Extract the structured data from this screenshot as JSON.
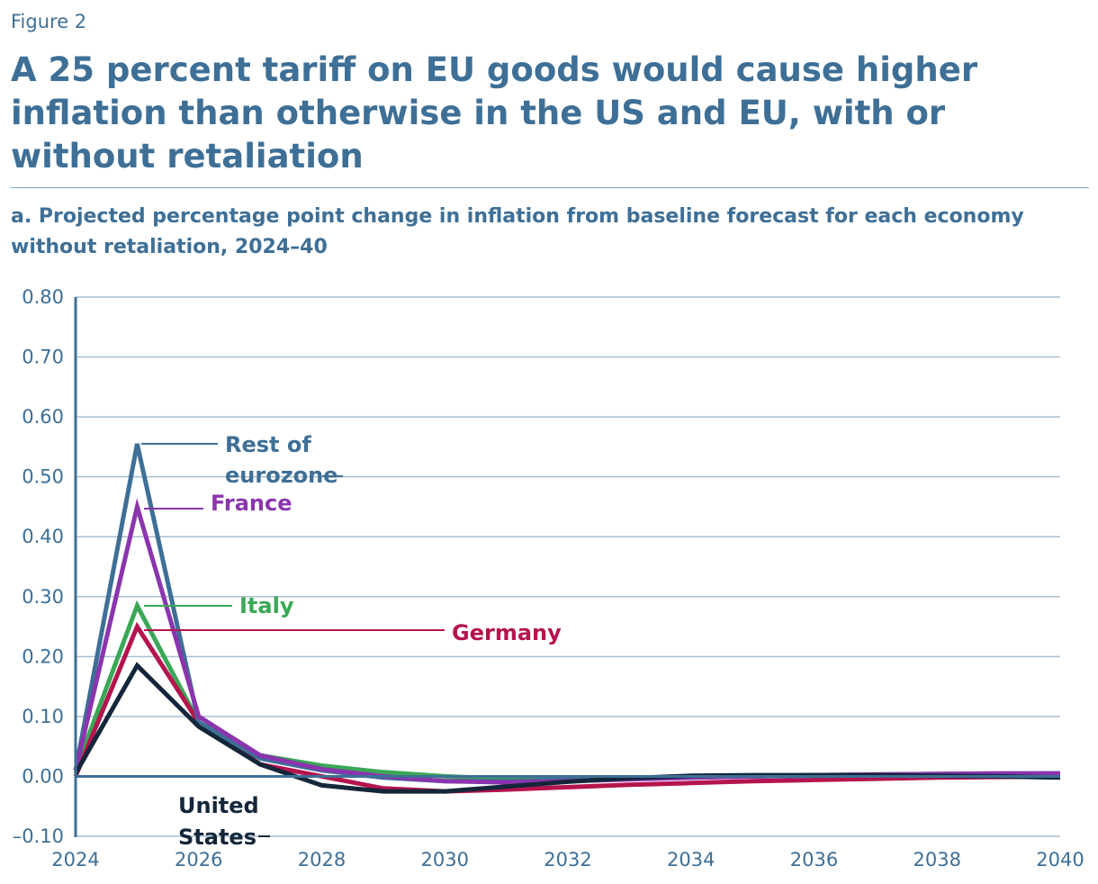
{
  "figure_label": "Figure 2",
  "title": "A 25 percent tariff on EU goods would cause higher inflation than otherwise in the US and EU, with or without retaliation",
  "subtitle": "a. Projected percentage point change in inflation from baseline forecast for each economy without retaliation, 2024–40",
  "colors": {
    "rest_of_eurozone": "#3e6f96",
    "france": "#8a35ad",
    "italy": "#3aa856",
    "germany": "#b5144f",
    "united_states": "#14263a",
    "grid": "#a9bfd1",
    "axis": "#3e6f96"
  },
  "chart_data": {
    "type": "line",
    "title": "",
    "xlabel": "",
    "ylabel": "",
    "xlim": [
      2024,
      2040
    ],
    "ylim": [
      -0.1,
      0.8
    ],
    "x": [
      2024,
      2025,
      2026,
      2027,
      2028,
      2029,
      2030,
      2031,
      2032,
      2033,
      2034,
      2035,
      2036,
      2037,
      2038,
      2039,
      2040
    ],
    "x_tick_labels": [
      "2024",
      "2026",
      "2028",
      "2030",
      "2032",
      "2034",
      "2036",
      "2038",
      "2040"
    ],
    "y_tick_labels": [
      "0.80",
      "0.70",
      "0.60",
      "0.50",
      "0.40",
      "0.30",
      "0.20",
      "0.10",
      "0.00",
      "–0.10"
    ],
    "series": [
      {
        "key": "italy",
        "name": "Italy",
        "label_lines": [
          "Italy"
        ],
        "values": [
          0.01,
          0.285,
          0.09,
          0.035,
          0.018,
          0.007,
          0.0,
          -0.004,
          -0.005,
          -0.003,
          0.0,
          0.0,
          0.002,
          0.003,
          0.004,
          0.004,
          0.005
        ]
      },
      {
        "key": "germany",
        "name": "Germany",
        "label_lines": [
          "Germany"
        ],
        "values": [
          0.0,
          0.25,
          0.09,
          0.02,
          0.0,
          -0.02,
          -0.025,
          -0.022,
          -0.018,
          -0.014,
          -0.011,
          -0.008,
          -0.006,
          -0.004,
          -0.002,
          -0.001,
          0.0
        ]
      },
      {
        "key": "rest_of_eurozone",
        "name": "Rest of eurozone",
        "label_lines": [
          "Rest of",
          "eurozone"
        ],
        "values": [
          0.01,
          0.555,
          0.09,
          0.03,
          0.01,
          -0.002,
          -0.008,
          -0.008,
          -0.006,
          -0.004,
          -0.002,
          0.0,
          0.001,
          0.002,
          0.003,
          0.003,
          0.003
        ]
      },
      {
        "key": "france",
        "name": "France",
        "label_lines": [
          "France"
        ],
        "values": [
          0.01,
          0.45,
          0.1,
          0.035,
          0.012,
          0.0,
          -0.008,
          -0.01,
          -0.008,
          -0.005,
          -0.002,
          0.0,
          0.002,
          0.003,
          0.004,
          0.005,
          0.005
        ]
      },
      {
        "key": "united_states",
        "name": "United States",
        "label_lines": [
          "United",
          "States"
        ],
        "values": [
          0.005,
          0.185,
          0.083,
          0.02,
          -0.015,
          -0.025,
          -0.025,
          -0.017,
          -0.009,
          -0.003,
          0.001,
          0.002,
          0.002,
          0.002,
          0.001,
          0.0,
          -0.002
        ]
      }
    ]
  }
}
